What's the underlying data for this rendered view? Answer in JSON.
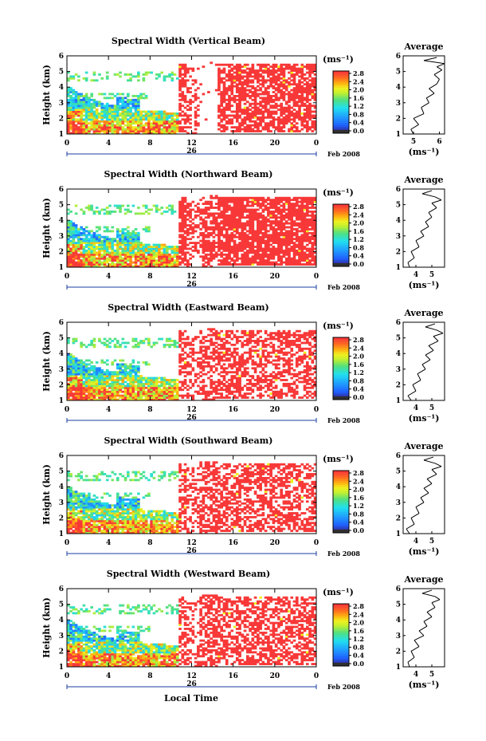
{
  "figure": {
    "xlabel": "Local Time",
    "date_label": "Feb 2008",
    "day_label": "26",
    "unit": "(ms⁻¹)",
    "avg_title": "Average",
    "avg_xlabel": "(ms⁻¹)",
    "colors": {
      "low": "#000060",
      "blue": "#2060ff",
      "cyan": "#20d8ff",
      "green": "#40e070",
      "yellow": "#f0f020",
      "orange": "#ff9a10",
      "red": "#f83838"
    }
  },
  "chart_data": [
    {
      "type": "heatmap",
      "title": "Spectral Width (Vertical Beam)",
      "ylabel": "Height (km)",
      "xlabel": "Local Time",
      "x_ticks": [
        "0",
        "4",
        "8",
        "12",
        "16",
        "20",
        "0"
      ],
      "y_ticks": [
        "1",
        "2",
        "3",
        "4",
        "5",
        "6"
      ],
      "xlim": [
        0,
        24
      ],
      "ylim": [
        1,
        6
      ],
      "colorbar_ticks": [
        "2.8",
        "2.4",
        "2.0",
        "1.6",
        "1.2",
        "0.8",
        "0.4",
        "0.0"
      ],
      "colorbar_range": [
        0.0,
        2.8
      ],
      "upper_cloud_km": 5.2,
      "average": {
        "title": "Average",
        "x_ticks": [
          "5",
          "6"
        ],
        "xlim": [
          4.6,
          6.2
        ],
        "ylim": [
          1,
          6
        ],
        "x": [
          5.0,
          4.9,
          5.2,
          5.0,
          5.4,
          5.3,
          5.6,
          5.5,
          5.8,
          5.6,
          5.9,
          6.0,
          5.8,
          6.1,
          5.9,
          6.2,
          5.4,
          5.9
        ],
        "y": [
          1.0,
          1.3,
          1.6,
          2.0,
          2.3,
          2.7,
          3.0,
          3.3,
          3.6,
          3.9,
          4.2,
          4.5,
          4.8,
          5.1,
          5.3,
          5.5,
          5.7,
          5.9
        ]
      }
    },
    {
      "type": "heatmap",
      "title": "Spectral Width (Northward Beam)",
      "ylabel": "Height (km)",
      "xlabel": "Local Time",
      "x_ticks": [
        "0",
        "4",
        "8",
        "12",
        "16",
        "20",
        "0"
      ],
      "y_ticks": [
        "1",
        "2",
        "3",
        "4",
        "5",
        "6"
      ],
      "xlim": [
        0,
        24
      ],
      "ylim": [
        1,
        6
      ],
      "colorbar_ticks": [
        "2.8",
        "2.4",
        "2.0",
        "1.6",
        "1.2",
        "0.8",
        "0.4",
        "0.0"
      ],
      "colorbar_range": [
        0.0,
        2.8
      ],
      "upper_cloud_km": 5.2,
      "average": {
        "title": "Average",
        "x_ticks": [
          "4",
          "5"
        ],
        "xlim": [
          3.2,
          5.8
        ],
        "ylim": [
          1,
          6
        ],
        "x": [
          3.6,
          3.5,
          3.9,
          3.7,
          4.2,
          4.0,
          4.5,
          4.3,
          4.8,
          4.6,
          5.0,
          4.8,
          5.3,
          5.0,
          5.6,
          5.2,
          4.4,
          5.0
        ],
        "y": [
          1.0,
          1.3,
          1.6,
          2.0,
          2.3,
          2.7,
          3.0,
          3.3,
          3.6,
          3.9,
          4.2,
          4.5,
          4.8,
          5.1,
          5.3,
          5.5,
          5.7,
          5.9
        ]
      }
    },
    {
      "type": "heatmap",
      "title": "Spectral Width (Eastward Beam)",
      "ylabel": "Height (km)",
      "xlabel": "Local Time",
      "x_ticks": [
        "0",
        "4",
        "8",
        "12",
        "16",
        "20",
        "0"
      ],
      "y_ticks": [
        "1",
        "2",
        "3",
        "4",
        "5",
        "6"
      ],
      "xlim": [
        0,
        24
      ],
      "ylim": [
        1,
        6
      ],
      "colorbar_ticks": [
        "2.8",
        "2.4",
        "2.0",
        "1.6",
        "1.2",
        "0.8",
        "0.4",
        "0.0"
      ],
      "colorbar_range": [
        0.0,
        2.8
      ],
      "upper_cloud_km": 5.2,
      "average": {
        "title": "Average",
        "x_ticks": [
          "4",
          "5"
        ],
        "xlim": [
          3.2,
          5.8
        ],
        "ylim": [
          1,
          6
        ],
        "x": [
          3.7,
          3.5,
          4.0,
          3.8,
          4.3,
          4.1,
          4.6,
          4.4,
          4.9,
          4.6,
          5.1,
          4.8,
          5.4,
          5.1,
          5.7,
          5.3,
          4.6,
          5.2
        ],
        "y": [
          1.0,
          1.3,
          1.6,
          2.0,
          2.3,
          2.7,
          3.0,
          3.3,
          3.6,
          3.9,
          4.2,
          4.5,
          4.8,
          5.1,
          5.3,
          5.5,
          5.7,
          5.9
        ]
      }
    },
    {
      "type": "heatmap",
      "title": "Spectral Width (Southward Beam)",
      "ylabel": "Height (km)",
      "xlabel": "Local Time",
      "x_ticks": [
        "0",
        "4",
        "8",
        "12",
        "16",
        "20",
        "0"
      ],
      "y_ticks": [
        "1",
        "2",
        "3",
        "4",
        "5",
        "6"
      ],
      "xlim": [
        0,
        24
      ],
      "ylim": [
        1,
        6
      ],
      "colorbar_ticks": [
        "2.8",
        "2.4",
        "2.0",
        "1.6",
        "1.2",
        "0.8",
        "0.4",
        "0.0"
      ],
      "colorbar_range": [
        0.0,
        2.8
      ],
      "upper_cloud_km": 5.2,
      "average": {
        "title": "Average",
        "x_ticks": [
          "4",
          "5"
        ],
        "xlim": [
          3.2,
          5.8
        ],
        "ylim": [
          1,
          6
        ],
        "x": [
          3.6,
          3.4,
          3.9,
          3.7,
          4.2,
          4.0,
          4.5,
          4.3,
          4.8,
          4.5,
          5.0,
          4.7,
          5.3,
          5.0,
          5.6,
          5.2,
          4.5,
          5.1
        ],
        "y": [
          1.0,
          1.3,
          1.6,
          2.0,
          2.3,
          2.7,
          3.0,
          3.3,
          3.6,
          3.9,
          4.2,
          4.5,
          4.8,
          5.1,
          5.3,
          5.5,
          5.7,
          5.9
        ]
      }
    },
    {
      "type": "heatmap",
      "title": "Spectral Width (Westward Beam)",
      "ylabel": "Height (km)",
      "xlabel": "Local Time",
      "x_ticks": [
        "0",
        "4",
        "8",
        "12",
        "16",
        "20",
        "0"
      ],
      "y_ticks": [
        "1",
        "2",
        "3",
        "4",
        "5",
        "6"
      ],
      "xlim": [
        0,
        24
      ],
      "ylim": [
        1,
        6
      ],
      "colorbar_ticks": [
        "2.8",
        "2.4",
        "2.0",
        "1.6",
        "1.2",
        "0.8",
        "0.4",
        "0.0"
      ],
      "colorbar_range": [
        0.0,
        2.8
      ],
      "upper_cloud_km": 5.2,
      "average": {
        "title": "Average",
        "x_ticks": [
          "4",
          "5"
        ],
        "xlim": [
          3.2,
          5.8
        ],
        "ylim": [
          1,
          6
        ],
        "x": [
          3.6,
          3.5,
          3.9,
          3.7,
          4.2,
          3.9,
          4.5,
          4.2,
          4.7,
          4.5,
          5.0,
          4.7,
          5.2,
          5.0,
          5.5,
          5.2,
          4.4,
          5.0
        ],
        "y": [
          1.0,
          1.3,
          1.6,
          2.0,
          2.3,
          2.7,
          3.0,
          3.3,
          3.6,
          3.9,
          4.2,
          4.5,
          4.8,
          5.1,
          5.3,
          5.5,
          5.7,
          5.9
        ]
      }
    }
  ]
}
